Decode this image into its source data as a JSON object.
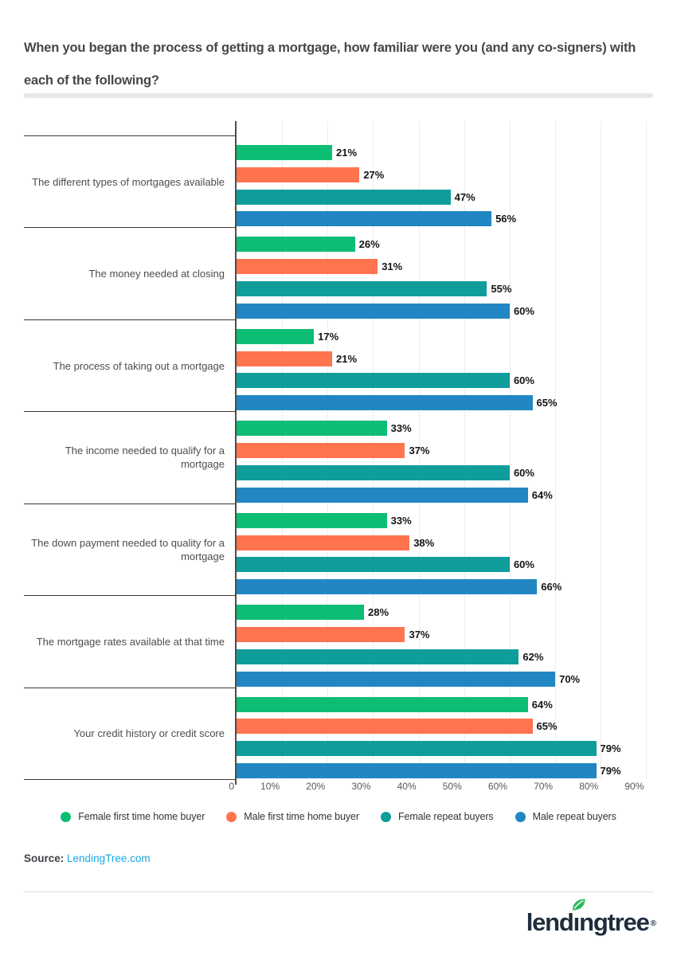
{
  "title": "When you began the process of getting a mortgage, how familiar were you (and any co-signers) with each of the following?",
  "title_lines": [
    "When you began the process of getting a mortgage, how familiar were you (and any co-signers) with",
    "each of the following?"
  ],
  "chart_data": {
    "type": "bar",
    "orientation": "horizontal",
    "title": "When you began the process of getting a mortgage, how familiar were you (and any co-signers) with each of the following?",
    "categories": [
      "The different types of mortgages available",
      "The money needed at closing",
      "The process of taking out a mortgage",
      "The income needed to qualify for a mortgage",
      "The down payment needed to quality for a mortgage",
      "The mortgage rates available at that time",
      "Your credit history or credit score"
    ],
    "series": [
      {
        "name": "Female first time home buyer",
        "color": "#0dbd74",
        "values": [
          21,
          26,
          17,
          33,
          33,
          28,
          64
        ]
      },
      {
        "name": "Male first time home buyer",
        "color": "#ff734e",
        "values": [
          27,
          31,
          21,
          37,
          38,
          37,
          65
        ]
      },
      {
        "name": "Female repeat buyers",
        "color": "#0f9d9b",
        "values": [
          47,
          55,
          60,
          60,
          60,
          62,
          79
        ]
      },
      {
        "name": "Male repeat buyers",
        "color": "#2286c3",
        "values": [
          56,
          60,
          65,
          64,
          66,
          70,
          79
        ]
      }
    ],
    "value_suffix": "%",
    "xlim": [
      0,
      95
    ],
    "x_tick_values": [
      0,
      10,
      20,
      30,
      40,
      50,
      60,
      70,
      80,
      90
    ],
    "x_tick_labels": [
      "0",
      "10%",
      "20%",
      "30%",
      "40%",
      "50%",
      "60%",
      "70%",
      "80%",
      "90%"
    ],
    "grid": true,
    "legend_position": "bottom"
  },
  "source": {
    "label": "Source:",
    "link_text": "LendingTree.com"
  },
  "footer": {
    "logo_name": "lendingtree",
    "logo_pre": "lend",
    "logo_i": "ı",
    "logo_post": "ngtree",
    "registered_mark": "®"
  }
}
